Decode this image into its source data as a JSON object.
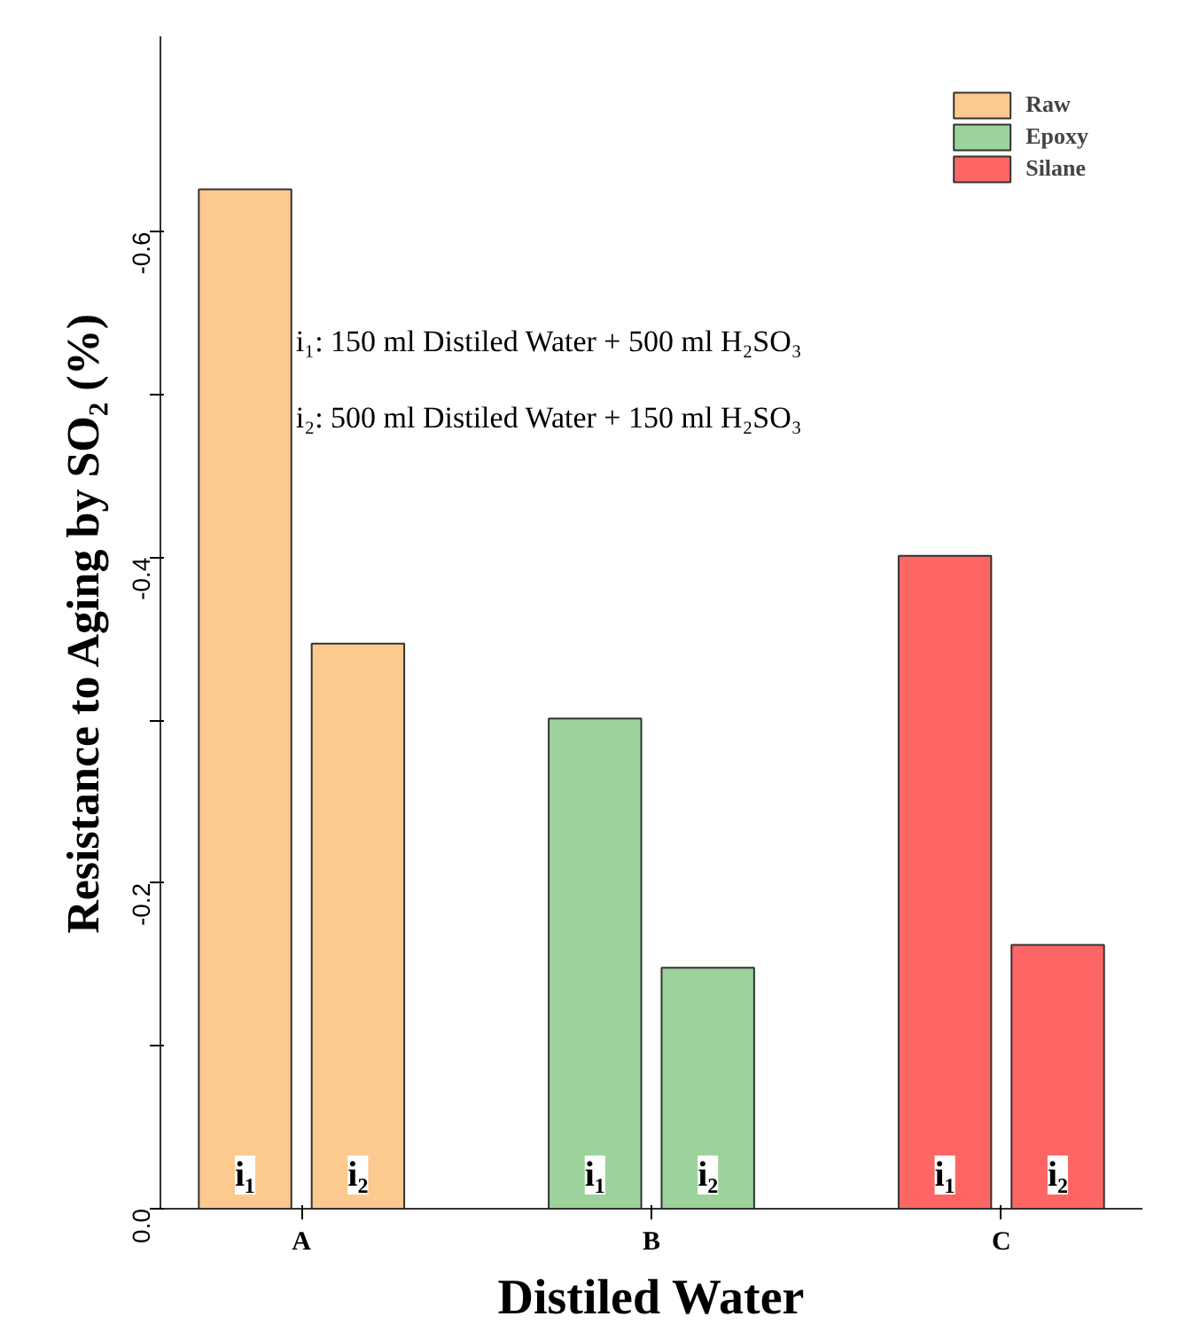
{
  "chart_data": {
    "type": "bar",
    "xlabel": "Distiled Water",
    "ylabel": "Resistance to Aging by SO₂ (%)",
    "categories": [
      "i₁",
      "i₂",
      "i₁",
      "i₂",
      "i₁",
      "i₂"
    ],
    "series": [
      {
        "name": "Raw",
        "color": "#fcc98e",
        "values": [
          -0.626,
          -0.347,
          null,
          null,
          null,
          null
        ]
      },
      {
        "name": "Epoxy",
        "color": "#9bd39a",
        "values": [
          null,
          null,
          -0.301,
          -0.148,
          null,
          null
        ]
      },
      {
        "name": "Silane",
        "color": "#fe6666",
        "values": [
          null,
          null,
          null,
          null,
          -0.401,
          -0.162
        ]
      }
    ],
    "ylim": [
      0,
      -0.72
    ],
    "yticks": [
      {
        "value": 0,
        "label": "0.0"
      },
      {
        "value": -0.1,
        "label": null
      },
      {
        "value": -0.2,
        "label": "-0.2"
      },
      {
        "value": -0.3,
        "label": null
      },
      {
        "value": -0.4,
        "label": "-0.4"
      },
      {
        "value": -0.5,
        "label": null
      },
      {
        "value": -0.6,
        "label": "-0.6"
      }
    ],
    "annotations": [
      "A",
      "B",
      "C",
      "i₁: 150 ml   Distiled   Water + 500 ml   H₂SO₃",
      "i₂: 500 ml   Distiled   Water + 150 ml   H₂SO₃"
    ],
    "legend": "top right",
    "grid": false
  }
}
